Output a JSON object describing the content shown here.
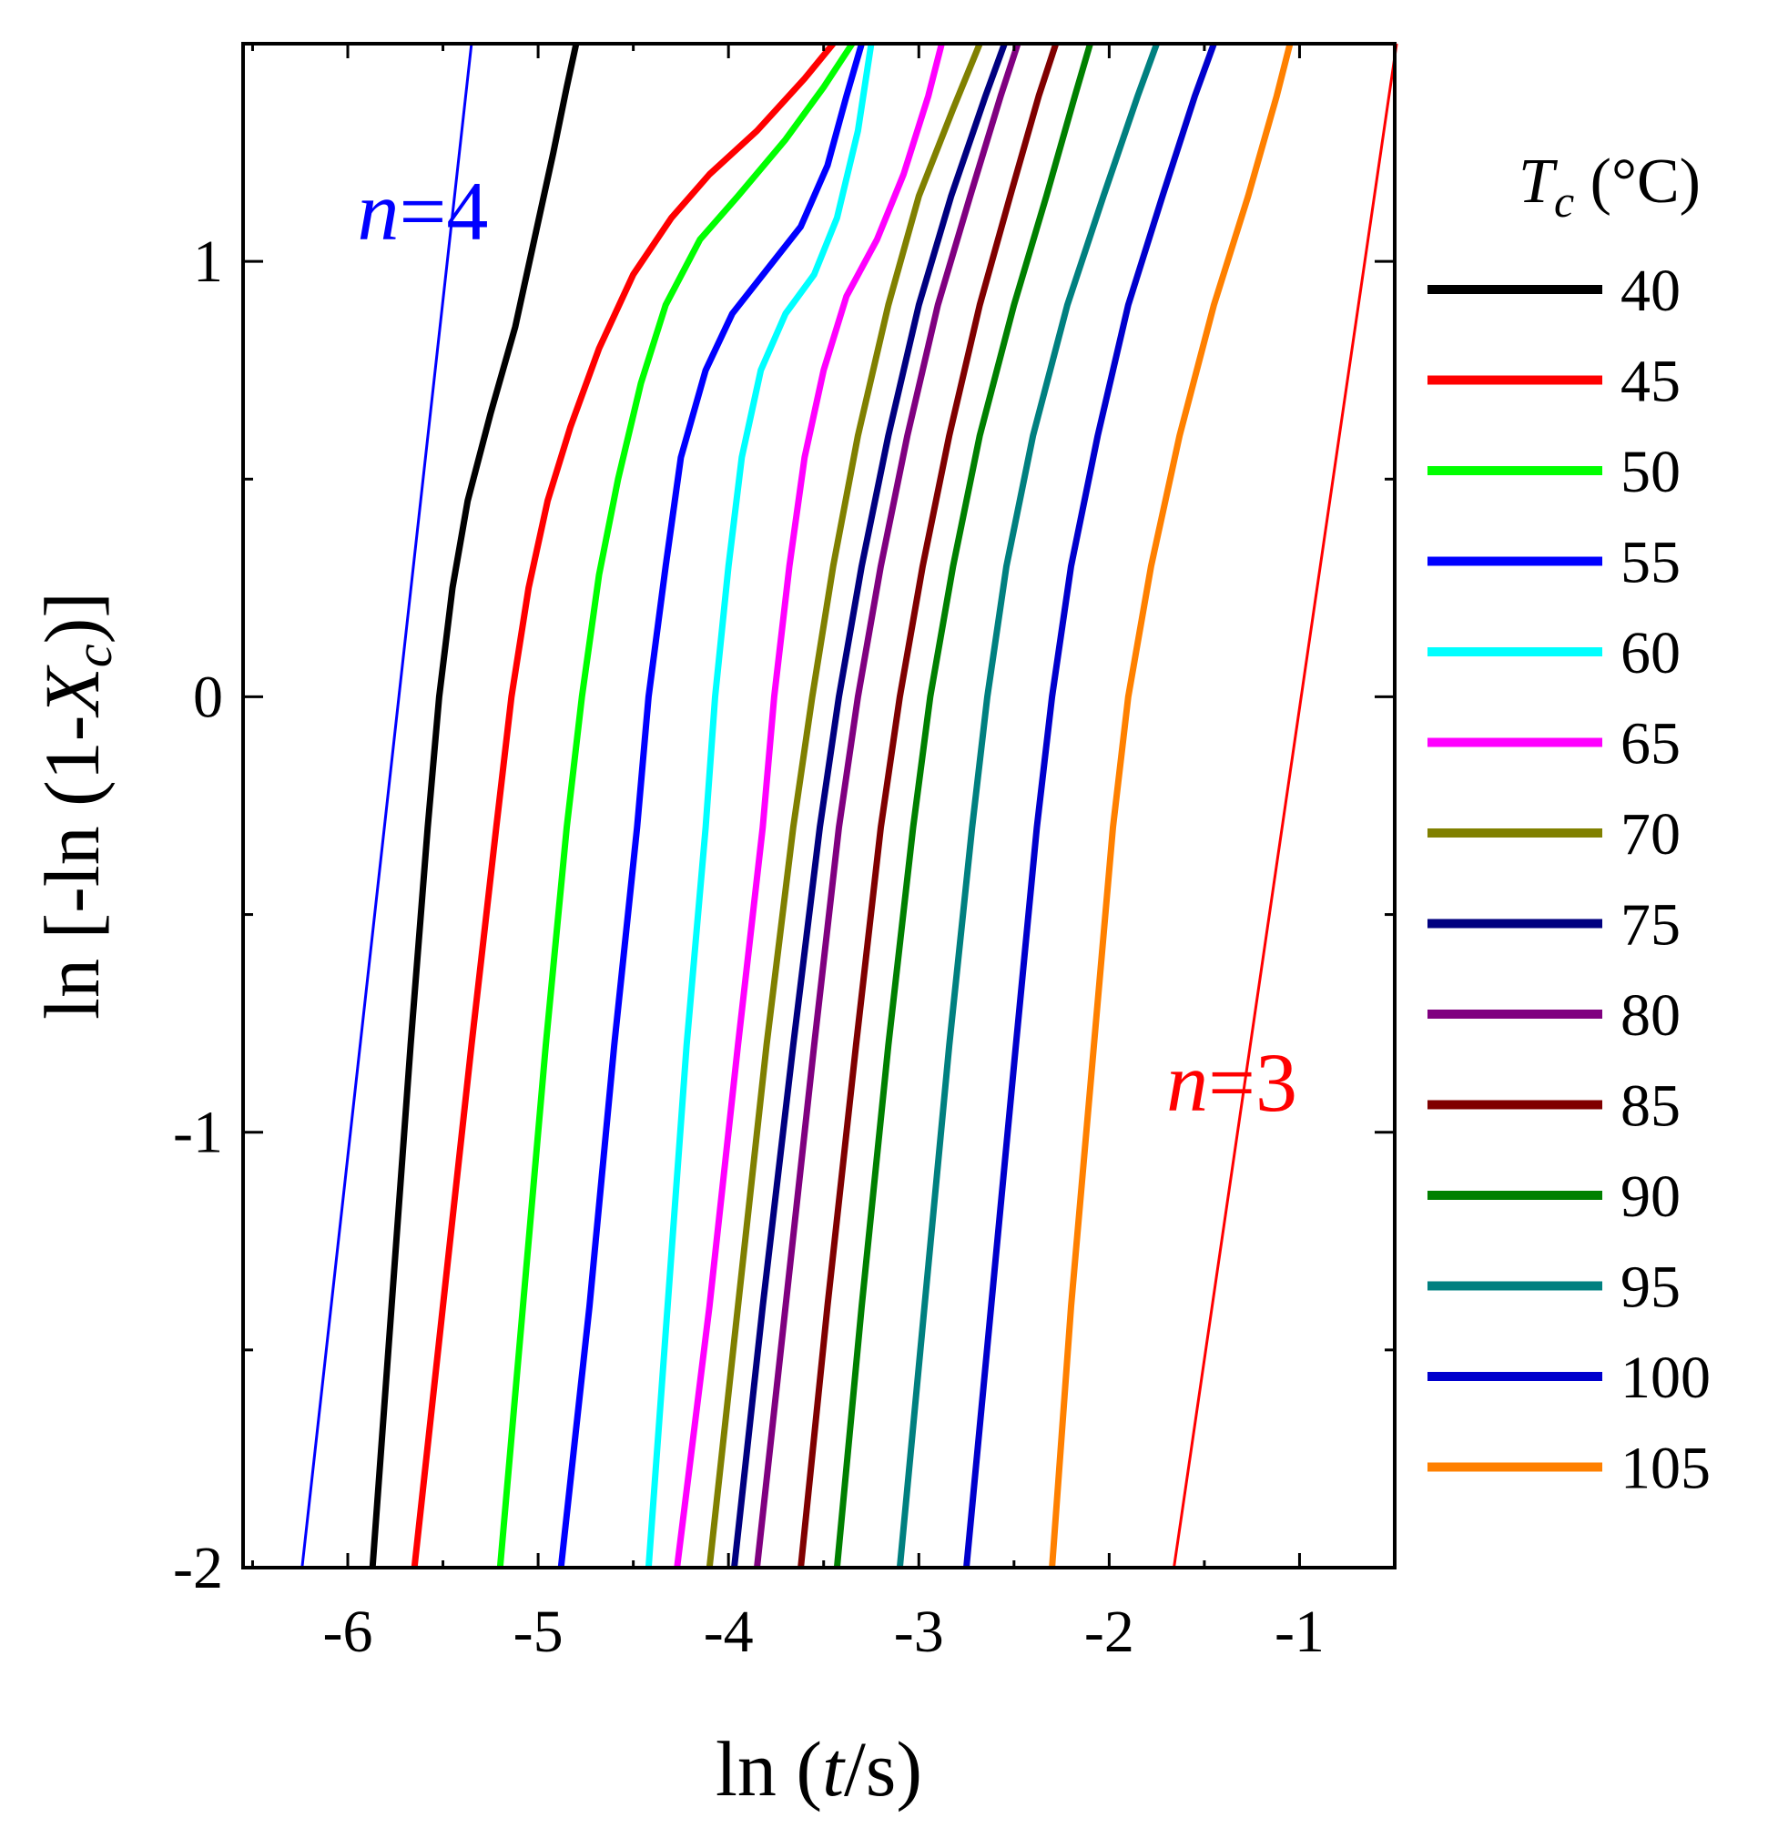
{
  "chart_data": {
    "type": "line",
    "title": "",
    "xlabel_parts": [
      "ln (",
      "t",
      "/s)"
    ],
    "ylabel_parts": [
      "ln [-ln (1-",
      "X",
      "c",
      ")]"
    ],
    "xlim": [
      -6.55,
      -0.5
    ],
    "ylim": [
      -2,
      1.5
    ],
    "xticks": [
      -6,
      -5,
      -4,
      -3,
      -2,
      -1
    ],
    "xtick_labels": [
      "-6",
      "-5",
      "-4",
      "-3",
      "-2",
      "-1"
    ],
    "yticks": [
      -2,
      -1,
      0,
      1
    ],
    "ytick_labels": [
      "-2",
      "-1",
      "0",
      "1"
    ],
    "grid": false,
    "legend_position": "right",
    "legend_title_parts": [
      "T",
      "c",
      " (°C)"
    ],
    "series": [
      {
        "name": "40",
        "color": "#000000",
        "points": [
          [
            -5.87,
            -2.0
          ],
          [
            -5.77,
            -1.4
          ],
          [
            -5.67,
            -0.8
          ],
          [
            -5.58,
            -0.3
          ],
          [
            -5.52,
            0.0
          ],
          [
            -5.45,
            0.25
          ],
          [
            -5.37,
            0.45
          ],
          [
            -5.25,
            0.65
          ],
          [
            -5.12,
            0.85
          ],
          [
            -5.02,
            1.05
          ],
          [
            -4.92,
            1.25
          ],
          [
            -4.85,
            1.4
          ],
          [
            -4.8,
            1.5
          ]
        ]
      },
      {
        "name": "45",
        "color": "#ff0000",
        "points": [
          [
            -5.65,
            -2.0
          ],
          [
            -5.5,
            -1.4
          ],
          [
            -5.35,
            -0.8
          ],
          [
            -5.22,
            -0.3
          ],
          [
            -5.14,
            0.0
          ],
          [
            -5.05,
            0.25
          ],
          [
            -4.95,
            0.45
          ],
          [
            -4.83,
            0.62
          ],
          [
            -4.68,
            0.8
          ],
          [
            -4.5,
            0.97
          ],
          [
            -4.3,
            1.1
          ],
          [
            -4.1,
            1.2
          ],
          [
            -3.85,
            1.3
          ],
          [
            -3.6,
            1.42
          ],
          [
            -3.45,
            1.5
          ]
        ]
      },
      {
        "name": "50",
        "color": "#00ff00",
        "points": [
          [
            -5.2,
            -2.0
          ],
          [
            -5.08,
            -1.4
          ],
          [
            -4.96,
            -0.8
          ],
          [
            -4.85,
            -0.3
          ],
          [
            -4.77,
            0.0
          ],
          [
            -4.68,
            0.28
          ],
          [
            -4.58,
            0.5
          ],
          [
            -4.46,
            0.72
          ],
          [
            -4.33,
            0.9
          ],
          [
            -4.15,
            1.05
          ],
          [
            -3.95,
            1.15
          ],
          [
            -3.7,
            1.28
          ],
          [
            -3.5,
            1.4
          ],
          [
            -3.35,
            1.5
          ]
        ]
      },
      {
        "name": "55",
        "color": "#0000ff",
        "points": [
          [
            -4.88,
            -2.0
          ],
          [
            -4.73,
            -1.4
          ],
          [
            -4.6,
            -0.8
          ],
          [
            -4.48,
            -0.3
          ],
          [
            -4.42,
            0.0
          ],
          [
            -4.33,
            0.3
          ],
          [
            -4.25,
            0.55
          ],
          [
            -4.12,
            0.75
          ],
          [
            -3.98,
            0.88
          ],
          [
            -3.8,
            0.98
          ],
          [
            -3.62,
            1.08
          ],
          [
            -3.48,
            1.22
          ],
          [
            -3.38,
            1.38
          ],
          [
            -3.3,
            1.5
          ]
        ]
      },
      {
        "name": "60",
        "color": "#00ffff",
        "points": [
          [
            -4.42,
            -2.0
          ],
          [
            -4.32,
            -1.4
          ],
          [
            -4.22,
            -0.8
          ],
          [
            -4.12,
            -0.3
          ],
          [
            -4.07,
            0.0
          ],
          [
            -4.0,
            0.3
          ],
          [
            -3.93,
            0.55
          ],
          [
            -3.83,
            0.75
          ],
          [
            -3.7,
            0.88
          ],
          [
            -3.55,
            0.97
          ],
          [
            -3.43,
            1.1
          ],
          [
            -3.32,
            1.3
          ],
          [
            -3.25,
            1.5
          ]
        ]
      },
      {
        "name": "65",
        "color": "#ff00ff",
        "points": [
          [
            -4.27,
            -2.0
          ],
          [
            -4.1,
            -1.4
          ],
          [
            -3.95,
            -0.8
          ],
          [
            -3.82,
            -0.3
          ],
          [
            -3.76,
            0.0
          ],
          [
            -3.68,
            0.3
          ],
          [
            -3.6,
            0.55
          ],
          [
            -3.5,
            0.75
          ],
          [
            -3.38,
            0.92
          ],
          [
            -3.22,
            1.05
          ],
          [
            -3.08,
            1.2
          ],
          [
            -2.95,
            1.38
          ],
          [
            -2.88,
            1.5
          ]
        ]
      },
      {
        "name": "70",
        "color": "#808000",
        "points": [
          [
            -4.1,
            -2.0
          ],
          [
            -3.95,
            -1.4
          ],
          [
            -3.8,
            -0.8
          ],
          [
            -3.66,
            -0.3
          ],
          [
            -3.56,
            0.0
          ],
          [
            -3.45,
            0.3
          ],
          [
            -3.32,
            0.6
          ],
          [
            -3.16,
            0.9
          ],
          [
            -3.0,
            1.15
          ],
          [
            -2.82,
            1.35
          ],
          [
            -2.68,
            1.5
          ]
        ]
      },
      {
        "name": "75",
        "color": "#000080",
        "points": [
          [
            -3.97,
            -2.0
          ],
          [
            -3.82,
            -1.4
          ],
          [
            -3.66,
            -0.8
          ],
          [
            -3.52,
            -0.3
          ],
          [
            -3.42,
            0.0
          ],
          [
            -3.3,
            0.3
          ],
          [
            -3.16,
            0.6
          ],
          [
            -3.0,
            0.9
          ],
          [
            -2.83,
            1.15
          ],
          [
            -2.65,
            1.38
          ],
          [
            -2.55,
            1.5
          ]
        ]
      },
      {
        "name": "80",
        "color": "#800080",
        "points": [
          [
            -3.85,
            -2.0
          ],
          [
            -3.7,
            -1.4
          ],
          [
            -3.55,
            -0.8
          ],
          [
            -3.42,
            -0.3
          ],
          [
            -3.32,
            0.0
          ],
          [
            -3.2,
            0.3
          ],
          [
            -3.06,
            0.6
          ],
          [
            -2.9,
            0.9
          ],
          [
            -2.73,
            1.15
          ],
          [
            -2.57,
            1.38
          ],
          [
            -2.48,
            1.5
          ]
        ]
      },
      {
        "name": "85",
        "color": "#800000",
        "points": [
          [
            -3.62,
            -2.0
          ],
          [
            -3.48,
            -1.4
          ],
          [
            -3.33,
            -0.8
          ],
          [
            -3.2,
            -0.3
          ],
          [
            -3.1,
            0.0
          ],
          [
            -2.98,
            0.3
          ],
          [
            -2.84,
            0.6
          ],
          [
            -2.68,
            0.9
          ],
          [
            -2.52,
            1.15
          ],
          [
            -2.37,
            1.38
          ],
          [
            -2.28,
            1.5
          ]
        ]
      },
      {
        "name": "90",
        "color": "#008000",
        "points": [
          [
            -3.43,
            -2.0
          ],
          [
            -3.3,
            -1.4
          ],
          [
            -3.16,
            -0.8
          ],
          [
            -3.03,
            -0.3
          ],
          [
            -2.94,
            0.0
          ],
          [
            -2.82,
            0.3
          ],
          [
            -2.68,
            0.6
          ],
          [
            -2.5,
            0.9
          ],
          [
            -2.33,
            1.15
          ],
          [
            -2.18,
            1.38
          ],
          [
            -2.1,
            1.5
          ]
        ]
      },
      {
        "name": "95",
        "color": "#008080",
        "points": [
          [
            -3.1,
            -2.0
          ],
          [
            -2.97,
            -1.4
          ],
          [
            -2.84,
            -0.8
          ],
          [
            -2.72,
            -0.3
          ],
          [
            -2.64,
            0.0
          ],
          [
            -2.54,
            0.3
          ],
          [
            -2.4,
            0.6
          ],
          [
            -2.22,
            0.9
          ],
          [
            -2.03,
            1.15
          ],
          [
            -1.85,
            1.38
          ],
          [
            -1.75,
            1.5
          ]
        ]
      },
      {
        "name": "100",
        "color": "#0000cd",
        "points": [
          [
            -2.75,
            -2.0
          ],
          [
            -2.62,
            -1.4
          ],
          [
            -2.49,
            -0.8
          ],
          [
            -2.38,
            -0.3
          ],
          [
            -2.3,
            0.0
          ],
          [
            -2.2,
            0.3
          ],
          [
            -2.06,
            0.6
          ],
          [
            -1.9,
            0.9
          ],
          [
            -1.72,
            1.15
          ],
          [
            -1.55,
            1.38
          ],
          [
            -1.45,
            1.5
          ]
        ]
      },
      {
        "name": "105",
        "color": "#ff8000",
        "points": [
          [
            -2.3,
            -2.0
          ],
          [
            -2.2,
            -1.4
          ],
          [
            -2.08,
            -0.8
          ],
          [
            -1.98,
            -0.3
          ],
          [
            -1.9,
            0.0
          ],
          [
            -1.78,
            0.3
          ],
          [
            -1.63,
            0.6
          ],
          [
            -1.45,
            0.9
          ],
          [
            -1.27,
            1.15
          ],
          [
            -1.12,
            1.38
          ],
          [
            -1.05,
            1.5
          ]
        ]
      }
    ],
    "reference_lines": [
      {
        "name": "n=4",
        "color": "#0000ff",
        "points": [
          [
            -6.24,
            -2.0
          ],
          [
            -5.35,
            1.5
          ]
        ]
      },
      {
        "name": "n=3",
        "color": "#ff0000",
        "points": [
          [
            -1.66,
            -2.0
          ],
          [
            -0.49,
            1.5
          ]
        ]
      }
    ],
    "annotations": [
      {
        "italic": "n",
        "text": "=4",
        "color": "#0000ff",
        "x": -5.95,
        "y": 1.05
      },
      {
        "italic": "n",
        "text": "=3",
        "color": "#ff0000",
        "x": -1.7,
        "y": -0.95
      }
    ]
  }
}
